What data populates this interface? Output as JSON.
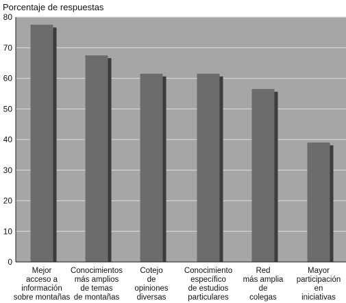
{
  "chart_data": {
    "type": "bar",
    "ylabel": "Porcentaje de respuestas",
    "xlabel": "",
    "ylim": [
      0,
      80
    ],
    "yticks": [
      0,
      10,
      20,
      30,
      40,
      50,
      60,
      70,
      80
    ],
    "grid": true,
    "categories": [
      [
        "Mejor",
        "acceso a",
        "información",
        "sobre montañas"
      ],
      [
        "Conocimientos",
        "más amplios",
        "de temas",
        "de montañas"
      ],
      [
        "Cotejo",
        "de",
        "opiniones",
        "diversas"
      ],
      [
        "Conocimiento",
        "específico",
        "de estudios",
        "particulares"
      ],
      [
        "Red",
        "más amplia",
        "de",
        "colegas"
      ],
      [
        "Mayor",
        "participación",
        "en",
        "iniciativas"
      ]
    ],
    "values": [
      77.5,
      67.5,
      61.5,
      61.5,
      56.5,
      39
    ],
    "colors": {
      "plot_background": "#a6a6a6",
      "gridline": "#d4d4d4",
      "bar": "#6c6c6c",
      "bar_shadow": "#3c3c3c",
      "axis": "#222222"
    }
  }
}
